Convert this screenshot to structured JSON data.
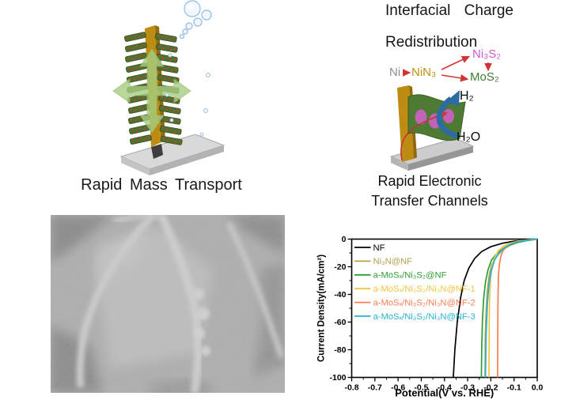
{
  "captions": {
    "mass_transport": "Rapid Mass Transport",
    "electronic_line1": "Rapid Electronic",
    "electronic_line2": "Transfer Channels"
  },
  "right_panel": {
    "title_line1": "Interfacial Charge",
    "title_line2": "Redistribution",
    "species": {
      "ni": "Ni",
      "nin3": "NiN₃",
      "ni3s2": "Ni₃S₂",
      "mos2": "MoS₂"
    },
    "species_colors": {
      "ni": "#8d8d8d",
      "nin3": "#bb9210",
      "ni3s2": "#c95bc5",
      "mos2": "#3e7e35",
      "arrow": "#d23333"
    },
    "products": {
      "h2": "H₂",
      "h2o": "H₂O"
    }
  },
  "chart_data": {
    "type": "line",
    "title": "",
    "xlabel": "Potential(V vs. RHE)",
    "ylabel": "Current Density(mA/cm²)",
    "xlim": [
      -0.8,
      0.0
    ],
    "ylim": [
      -100,
      0
    ],
    "grid": false,
    "legend_position": "top-left",
    "xticks": {
      "values": [
        -0.8,
        -0.7,
        -0.6,
        -0.5,
        -0.4,
        -0.3,
        -0.2,
        -0.1,
        0.0
      ],
      "labels": [
        "-0.8",
        "-0.7",
        "-0.6",
        "-0.5",
        "-0.4",
        "-0.3",
        "-0.2",
        "-0.1",
        "0.0"
      ]
    },
    "yticks": {
      "values": [
        0,
        -20,
        -40,
        -60,
        -80,
        -100
      ],
      "labels": [
        "0",
        "-20",
        "-40",
        "-60",
        "-80",
        "-100"
      ]
    },
    "series": [
      {
        "name": "NF",
        "color": "#000000",
        "points": [
          [
            0,
            0
          ],
          [
            -0.05,
            -0.6
          ],
          [
            -0.1,
            -1.5
          ],
          [
            -0.15,
            -3
          ],
          [
            -0.2,
            -5.5
          ],
          [
            -0.24,
            -9
          ],
          [
            -0.27,
            -14
          ],
          [
            -0.295,
            -21
          ],
          [
            -0.315,
            -30
          ],
          [
            -0.33,
            -42
          ],
          [
            -0.345,
            -60
          ],
          [
            -0.355,
            -80
          ],
          [
            -0.362,
            -100
          ]
        ]
      },
      {
        "name": "Ni₃N@NF",
        "color": "#b3a14c",
        "points": [
          [
            0,
            0
          ],
          [
            -0.042,
            -1
          ],
          [
            -0.082,
            -2.4
          ],
          [
            -0.118,
            -4.5
          ],
          [
            -0.15,
            -8
          ],
          [
            -0.175,
            -12.5
          ],
          [
            -0.196,
            -18.5
          ],
          [
            -0.207,
            -26
          ],
          [
            -0.215,
            -37
          ],
          [
            -0.22,
            -51
          ],
          [
            -0.224,
            -71
          ],
          [
            -0.225,
            -100
          ]
        ]
      },
      {
        "name": "a-MoSₓ/Ni₃S₂@NF",
        "color": "#2f9e32",
        "points": [
          [
            0,
            0
          ],
          [
            -0.05,
            -1.2
          ],
          [
            -0.1,
            -3
          ],
          [
            -0.14,
            -6
          ],
          [
            -0.172,
            -10
          ],
          [
            -0.197,
            -15
          ],
          [
            -0.212,
            -22
          ],
          [
            -0.223,
            -31
          ],
          [
            -0.231,
            -43
          ],
          [
            -0.236,
            -58
          ],
          [
            -0.239,
            -77
          ],
          [
            -0.241,
            -100
          ]
        ]
      },
      {
        "name": "a-MoSₓ/Ni₃S₂/Ni₃N@NF-1",
        "color": "#f2c63f",
        "points": [
          [
            0,
            0
          ],
          [
            -0.04,
            -0.5
          ],
          [
            -0.08,
            -1.3
          ],
          [
            -0.115,
            -2.8
          ],
          [
            -0.145,
            -5
          ],
          [
            -0.168,
            -8.5
          ],
          [
            -0.185,
            -13.5
          ],
          [
            -0.195,
            -20
          ],
          [
            -0.201,
            -28
          ],
          [
            -0.205,
            -42
          ],
          [
            -0.207,
            -60
          ],
          [
            -0.208,
            -100
          ]
        ]
      },
      {
        "name": "a-MoSₓ/Ni₃S₂/Ni₃N@NF-2",
        "color": "#f97e52",
        "points": [
          [
            0,
            0
          ],
          [
            -0.03,
            -0.4
          ],
          [
            -0.06,
            -1
          ],
          [
            -0.09,
            -2
          ],
          [
            -0.112,
            -3.3
          ],
          [
            -0.133,
            -5.5
          ],
          [
            -0.148,
            -8.5
          ],
          [
            -0.157,
            -12.5
          ],
          [
            -0.163,
            -18
          ],
          [
            -0.167,
            -26
          ],
          [
            -0.169,
            -40
          ],
          [
            -0.17,
            -60
          ],
          [
            -0.171,
            -100
          ]
        ]
      },
      {
        "name": "a-MoSₓ/Ni₃S₂/Ni₃N@NF-3",
        "color": "#27b3d2",
        "points": [
          [
            0,
            0
          ],
          [
            -0.038,
            -0.6
          ],
          [
            -0.075,
            -1.6
          ],
          [
            -0.11,
            -3.3
          ],
          [
            -0.14,
            -6
          ],
          [
            -0.165,
            -10
          ],
          [
            -0.185,
            -15.5
          ],
          [
            -0.198,
            -23
          ],
          [
            -0.208,
            -33
          ],
          [
            -0.215,
            -47
          ],
          [
            -0.22,
            -68
          ],
          [
            -0.223,
            -100
          ]
        ]
      }
    ]
  }
}
